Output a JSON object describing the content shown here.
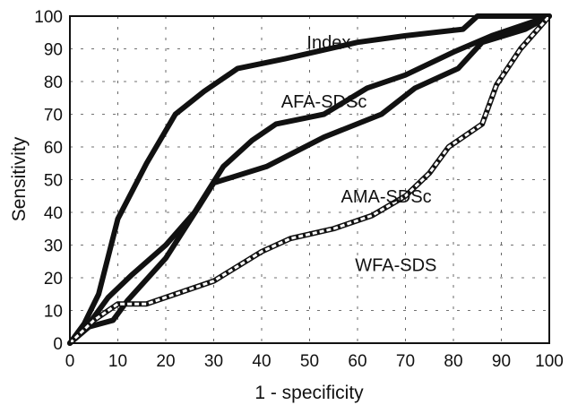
{
  "chart_data": {
    "type": "line",
    "title": "",
    "xlabel": "1 - specificity",
    "ylabel": "Sensitivity",
    "xlim": [
      0,
      100
    ],
    "ylim": [
      0,
      100
    ],
    "xticks": [
      0,
      10,
      20,
      30,
      40,
      50,
      60,
      70,
      80,
      90,
      100
    ],
    "yticks": [
      0,
      10,
      20,
      30,
      40,
      50,
      60,
      70,
      80,
      90,
      100
    ],
    "grid": true,
    "series": [
      {
        "name": "Index",
        "color": "#111111",
        "style": "thick",
        "x": [
          0,
          3,
          6,
          10,
          16,
          22,
          28,
          35,
          45,
          60,
          70,
          82,
          85,
          100
        ],
        "y": [
          0,
          6,
          15,
          38,
          55,
          70,
          77,
          84,
          87,
          92,
          94,
          96,
          100,
          100
        ]
      },
      {
        "name": "AFA-SDSc",
        "color": "#111111",
        "style": "thick",
        "x": [
          0,
          4,
          8,
          13,
          20,
          26,
          32,
          38,
          43,
          53,
          62,
          70,
          80,
          88,
          96,
          100
        ],
        "y": [
          0,
          6,
          14,
          21,
          30,
          40,
          54,
          62,
          67,
          70,
          78,
          82,
          89,
          94,
          98,
          100
        ]
      },
      {
        "name": "AMA-SDSc",
        "color": "#111111",
        "style": "thick",
        "x": [
          0,
          4,
          9,
          12,
          20,
          27,
          30,
          41,
          53,
          65,
          72,
          81,
          86,
          95,
          100
        ],
        "y": [
          0,
          5,
          7,
          13,
          26,
          42,
          49,
          54,
          63,
          70,
          78,
          84,
          92,
          96,
          100
        ]
      },
      {
        "name": "WFA-SDS",
        "color": "#111111",
        "style": "dashed-outline",
        "x": [
          0,
          5,
          10,
          16,
          22,
          30,
          40,
          46,
          55,
          63,
          70,
          75,
          79,
          82,
          86,
          89,
          94,
          100
        ],
        "y": [
          0,
          7,
          12,
          12,
          15,
          19,
          28,
          32,
          35,
          39,
          45,
          52,
          60,
          63,
          67,
          79,
          90,
          100
        ]
      }
    ],
    "labels": [
      {
        "text": "Index",
        "x": 54,
        "y": 92
      },
      {
        "text": "AFA-SDSc",
        "x": 53,
        "y": 74
      },
      {
        "text": "AMA-SDSc",
        "x": 66,
        "y": 45
      },
      {
        "text": "WFA-SDS",
        "x": 68,
        "y": 24
      }
    ]
  }
}
